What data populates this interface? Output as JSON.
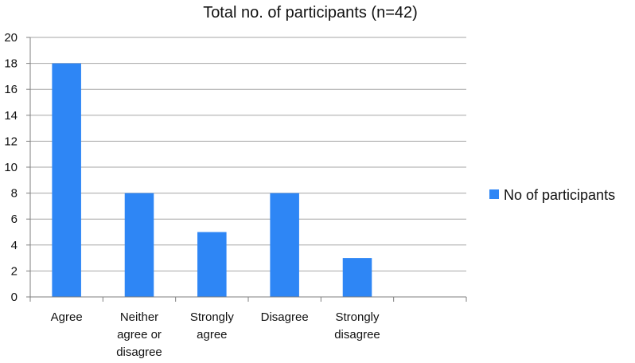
{
  "chart_data": {
    "type": "bar",
    "title": "Total no. of participants (n=42)",
    "categories": [
      [
        "Agree"
      ],
      [
        "Neither",
        "agree or",
        "disagree"
      ],
      [
        "Strongly",
        "agree"
      ],
      [
        "Disagree"
      ],
      [
        "Strongly",
        "disagree"
      ],
      [
        ""
      ]
    ],
    "series": [
      {
        "name": "No of participants",
        "values": [
          18,
          8,
          5,
          8,
          3,
          null
        ]
      }
    ],
    "ylim": [
      0,
      20
    ],
    "yticks": [
      0,
      2,
      4,
      6,
      8,
      10,
      12,
      14,
      16,
      18,
      20
    ],
    "grid": true,
    "legend": "right",
    "colors": {
      "bar": "#2e86f5",
      "grid": "#a6a6a6",
      "axis": "#7f7f7f"
    }
  }
}
